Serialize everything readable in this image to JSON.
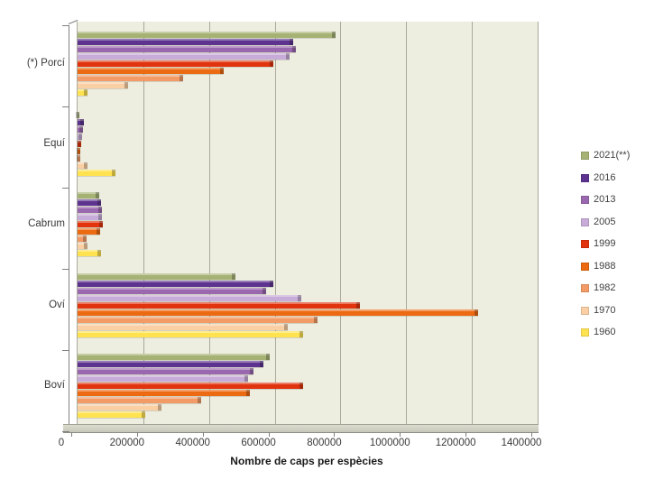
{
  "chart_data": {
    "type": "bar",
    "orientation": "horizontal",
    "title": "",
    "xlabel": "Nombre de caps per espècies",
    "ylabel": "",
    "xlim": [
      0,
      1400000
    ],
    "xticks": [
      0,
      200000,
      400000,
      600000,
      800000,
      1000000,
      1200000,
      1400000
    ],
    "xtick_labels": [
      "0",
      "200000",
      "400000",
      "600000",
      "800000",
      "1000000",
      "1200000",
      "1400000"
    ],
    "grid": true,
    "legend_position": "right",
    "plot_bg_color": "#EDEEDF",
    "gridline_color": "#A9A99C",
    "categories": [
      "(*) Porcí",
      "Equí",
      "Cabrum",
      "Oví",
      "Boví"
    ],
    "series": [
      {
        "name": "2021(**)",
        "color": "#A6B274",
        "values": [
          785000,
          5000,
          66000,
          480000,
          585000
        ]
      },
      {
        "name": "2016",
        "color": "#5E3390",
        "values": [
          655000,
          19000,
          71000,
          595000,
          565000
        ]
      },
      {
        "name": "2013",
        "color": "#9A68AE",
        "values": [
          665000,
          16000,
          74000,
          575000,
          535000
        ]
      },
      {
        "name": "2005",
        "color": "#C7ABD8",
        "values": [
          645000,
          13000,
          73000,
          680000,
          520000
        ]
      },
      {
        "name": "1999",
        "color": "#E0330E",
        "values": [
          595000,
          11000,
          78000,
          860000,
          685000
        ]
      },
      {
        "name": "1988",
        "color": "#EB6A12",
        "values": [
          445000,
          7000,
          68000,
          1220000,
          525000
        ]
      },
      {
        "name": "1982",
        "color": "#F39B66",
        "values": [
          320000,
          9000,
          27000,
          730000,
          375000
        ]
      },
      {
        "name": "1970",
        "color": "#F9CFA3",
        "values": [
          155000,
          30000,
          29000,
          640000,
          255000
        ]
      },
      {
        "name": "1960",
        "color": "#FFE24F",
        "values": [
          30000,
          115000,
          72000,
          685000,
          205000
        ]
      }
    ]
  }
}
